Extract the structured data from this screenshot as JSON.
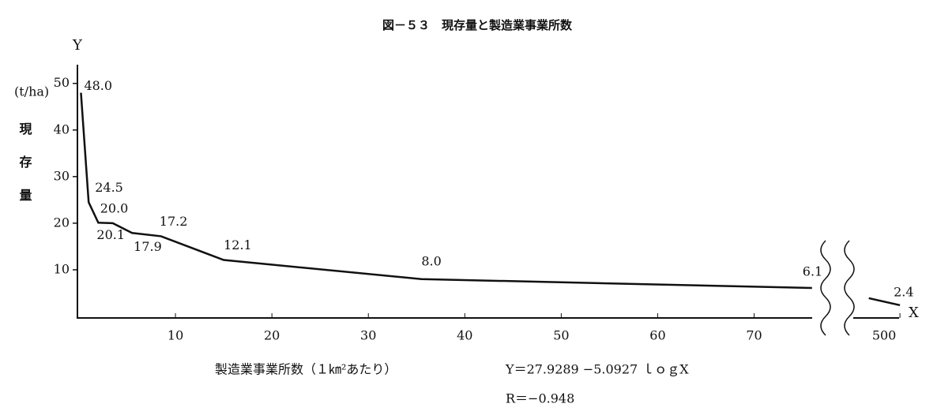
{
  "chart_data": {
    "type": "line",
    "title": "図－５３　現存量と製造業事業所数",
    "y_axis_letter": "Y",
    "x_axis_letter": "X",
    "y_label": "現存量",
    "y_unit": "(t/ha)",
    "x_label": "製造業事業所数（１㎞²あたり）",
    "equation": "Y＝27.9289 −5.0927 ｌｏｇX",
    "correlation": "R＝−0.948",
    "color": "#111111",
    "xlim": [
      0,
      77
    ],
    "xticks": [
      10,
      20,
      30,
      40,
      50,
      60,
      70
    ],
    "x2lim": [
      200,
      530
    ],
    "x2ticks": [
      500
    ],
    "ylim": [
      0,
      53
    ],
    "yticks": [
      10,
      20,
      30,
      40,
      50
    ],
    "series": [
      {
        "name": "main",
        "x": [
          0.2,
          1,
          2,
          3.5,
          5.5,
          8.5,
          15,
          35.5,
          76
        ],
        "values": [
          48,
          24.5,
          20.1,
          20,
          17.9,
          17.2,
          12.1,
          8,
          6.1
        ],
        "value_labels": [
          "48.0",
          "24.5",
          "20.1",
          "20.0",
          "17.9",
          "17.2",
          "12.1",
          "8.0",
          "6.1"
        ]
      },
      {
        "name": "beyond-break",
        "axis": "x2",
        "x": [
          300,
          500
        ],
        "values": [
          3.9,
          2.4
        ],
        "value_labels": [
          null,
          "2.4"
        ]
      }
    ]
  }
}
